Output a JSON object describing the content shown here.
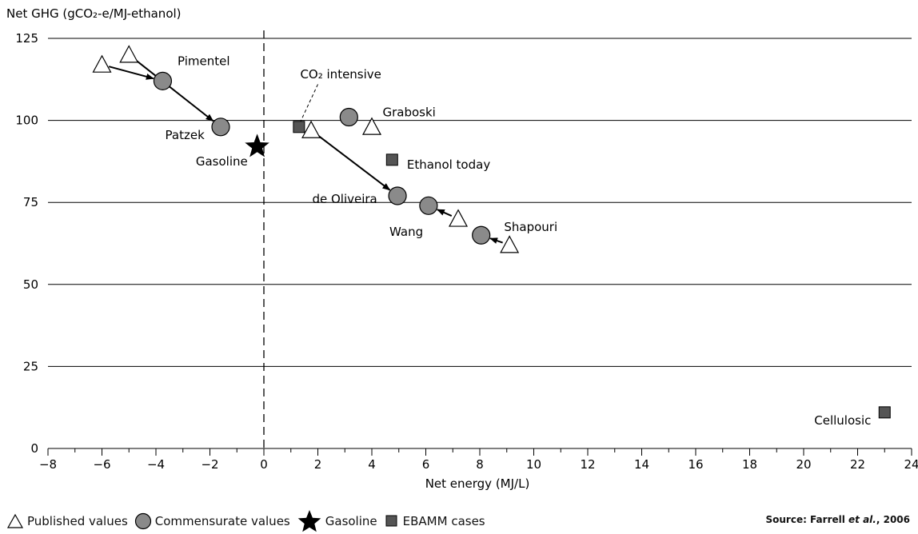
{
  "chart_data": {
    "type": "scatter",
    "ylabel": "Net GHG (gCO₂-e/MJ-ethanol)",
    "xlabel": "Net energy (MJ/L)",
    "xlim": [
      -8,
      24
    ],
    "ylim": [
      0,
      125
    ],
    "x_ticks": [
      -8,
      -6,
      -4,
      -2,
      0,
      2,
      4,
      6,
      8,
      10,
      12,
      14,
      16,
      18,
      20,
      22,
      24
    ],
    "x_tick_labels": [
      "−8",
      "−6",
      "−4",
      "−2",
      "0",
      "2",
      "4",
      "6",
      "8",
      "10",
      "12",
      "14",
      "16",
      "18",
      "20",
      "22",
      "24"
    ],
    "y_ticks": [
      0,
      25,
      50,
      75,
      100,
      125
    ],
    "grid": "horizontal",
    "reference_line": {
      "x": 0,
      "style": "dashed"
    },
    "series": [
      {
        "name": "Published values",
        "marker": "triangle",
        "points": [
          {
            "x": -6.0,
            "y": 117
          },
          {
            "x": -5.0,
            "y": 120
          },
          {
            "x": 1.75,
            "y": 97
          },
          {
            "x": 4.0,
            "y": 98
          },
          {
            "x": 7.2,
            "y": 70
          },
          {
            "x": 9.1,
            "y": 62
          }
        ]
      },
      {
        "name": "Commensurate values",
        "marker": "circle",
        "points": [
          {
            "x": -3.75,
            "y": 112
          },
          {
            "x": -1.6,
            "y": 98
          },
          {
            "x": 3.15,
            "y": 101
          },
          {
            "x": 4.95,
            "y": 77
          },
          {
            "x": 6.1,
            "y": 74
          },
          {
            "x": 8.05,
            "y": 65
          }
        ]
      },
      {
        "name": "Gasoline",
        "marker": "star",
        "points": [
          {
            "x": -0.25,
            "y": 92
          }
        ]
      },
      {
        "name": "EBAMM cases",
        "marker": "square",
        "points": [
          {
            "x": 1.3,
            "y": 98
          },
          {
            "x": 4.75,
            "y": 88
          },
          {
            "x": 23.0,
            "y": 11
          }
        ]
      }
    ],
    "arrows": [
      {
        "from": [
          -6.0,
          117
        ],
        "to": [
          -3.75,
          112
        ]
      },
      {
        "from": [
          -5.0,
          120
        ],
        "to": [
          -1.6,
          98
        ]
      },
      {
        "from": [
          1.75,
          97
        ],
        "to": [
          4.95,
          77
        ]
      },
      {
        "from": [
          7.2,
          70
        ],
        "to": [
          6.1,
          74
        ]
      },
      {
        "from": [
          9.1,
          62
        ],
        "to": [
          8.05,
          65
        ]
      }
    ],
    "annotations": [
      {
        "text": "Pimentel",
        "x": -3.2,
        "y": 118,
        "anchor": "start"
      },
      {
        "text": "Patzek",
        "x": -2.2,
        "y": 95.5,
        "anchor": "end"
      },
      {
        "text": "Gasoline",
        "x": -0.6,
        "y": 87.5,
        "anchor": "end"
      },
      {
        "text": "Graboski",
        "x": 4.4,
        "y": 102.5,
        "anchor": "start"
      },
      {
        "text": "Ethanol today",
        "x": 5.3,
        "y": 86.5,
        "anchor": "start"
      },
      {
        "text": "de Oliveira",
        "x": 4.2,
        "y": 76,
        "anchor": "end"
      },
      {
        "text": "Wang",
        "x": 5.9,
        "y": 66,
        "anchor": "end"
      },
      {
        "text": "Shapouri",
        "x": 8.9,
        "y": 67.5,
        "anchor": "start"
      },
      {
        "text": "Cellulosic",
        "x": 22.5,
        "y": 8.5,
        "anchor": "end"
      }
    ],
    "co2_label": {
      "text": "CO₂ intensive",
      "x": 2.85,
      "y": 114,
      "anchor": "middle",
      "leader_from": [
        2.0,
        111
      ],
      "leader_to": [
        1.35,
        99.5
      ]
    },
    "colors": {
      "marker_fill": "#8a8a8a",
      "square_fill": "#555555",
      "star": "#000000",
      "grid": "#000000",
      "triangle_fill": "#ffffff",
      "arrow": "#000000"
    }
  },
  "legend": {
    "items": [
      {
        "label": "Published values",
        "icon": "triangle-icon"
      },
      {
        "label": "Commensurate values",
        "icon": "circle-icon"
      },
      {
        "label": "Gasoline",
        "icon": "star-icon"
      },
      {
        "label": "EBAMM cases",
        "icon": "square-icon"
      }
    ]
  },
  "source": {
    "prefix": "Source: Farrell ",
    "italic": "et al.",
    "suffix": ", 2006"
  }
}
